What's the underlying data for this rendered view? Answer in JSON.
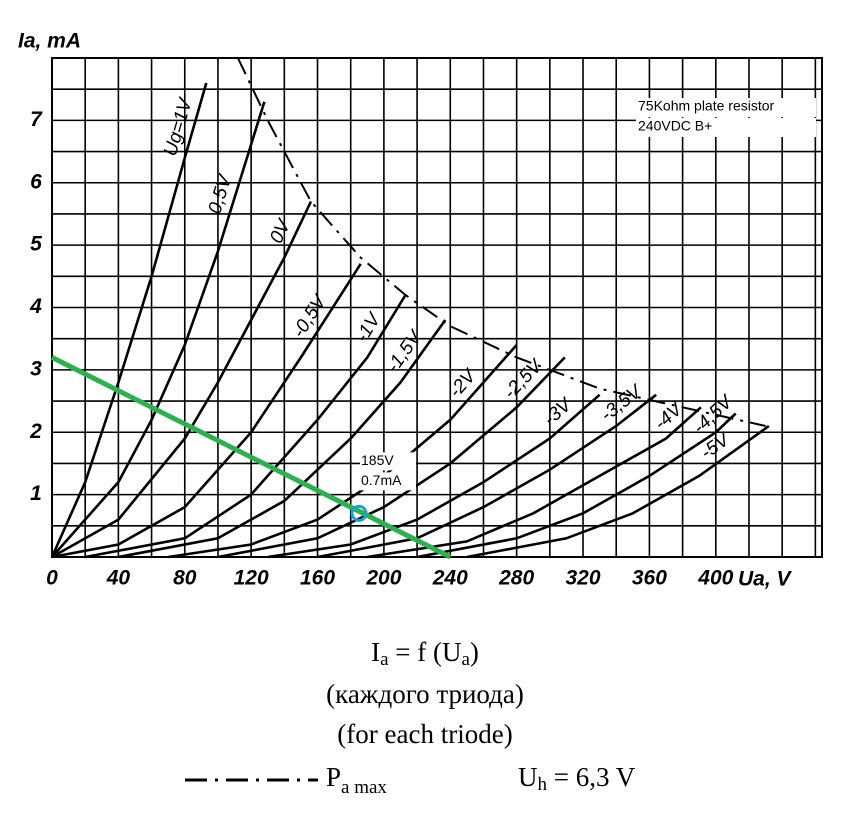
{
  "chart_data": {
    "type": "line",
    "y_label": "Ia, mA",
    "x_label": "Ua, V",
    "xlim": [
      0,
      464
    ],
    "ylim": [
      0,
      8
    ],
    "xticks": [
      0,
      40,
      80,
      120,
      160,
      200,
      240,
      280,
      320,
      360,
      400
    ],
    "yticks": [
      1,
      2,
      3,
      4,
      5,
      6,
      7
    ],
    "xgrid": [
      0,
      20,
      40,
      60,
      80,
      100,
      120,
      140,
      160,
      180,
      200,
      220,
      240,
      260,
      280,
      300,
      320,
      340,
      360,
      380,
      400,
      420,
      440,
      460
    ],
    "ygrid": [
      0,
      0.5,
      1,
      1.5,
      2,
      2.5,
      3,
      3.5,
      4,
      4.5,
      5,
      5.5,
      6,
      6.5,
      7,
      7.5
    ],
    "series": [
      {
        "name": "Ug=1V",
        "color": "#000000",
        "x": [
          0,
          20,
          40,
          60,
          80,
          93
        ],
        "values": [
          0,
          1.2,
          2.8,
          4.5,
          6.4,
          7.6
        ]
      },
      {
        "name": "0,5V",
        "color": "#000000",
        "x": [
          0,
          40,
          60,
          80,
          100,
          128
        ],
        "values": [
          0,
          1.2,
          2.2,
          3.4,
          4.9,
          7.3
        ]
      },
      {
        "name": "0V",
        "color": "#000000",
        "x": [
          0,
          40,
          80,
          100,
          120,
          140,
          156
        ],
        "values": [
          0,
          0.6,
          1.9,
          2.8,
          3.8,
          4.8,
          5.7
        ]
      },
      {
        "name": "-0,5V",
        "color": "#000000",
        "x": [
          0,
          40,
          80,
          120,
          150,
          186
        ],
        "values": [
          0,
          0.2,
          0.8,
          2.0,
          3.2,
          4.7
        ]
      },
      {
        "name": "-1V",
        "color": "#000000",
        "x": [
          20,
          80,
          120,
          160,
          190,
          213
        ],
        "values": [
          0,
          0.3,
          1.0,
          2.2,
          3.2,
          4.2
        ]
      },
      {
        "name": "-1,5V",
        "color": "#000000",
        "x": [
          40,
          100,
          140,
          180,
          210,
          237
        ],
        "values": [
          0,
          0.3,
          0.9,
          1.9,
          2.8,
          3.8
        ]
      },
      {
        "name": "-2V",
        "color": "#000000",
        "x": [
          70,
          120,
          160,
          200,
          240,
          280
        ],
        "values": [
          0,
          0.2,
          0.6,
          1.3,
          2.2,
          3.4
        ]
      },
      {
        "name": "-2,5V",
        "color": "#000000",
        "x": [
          100,
          160,
          200,
          240,
          280,
          309
        ],
        "values": [
          0,
          0.3,
          0.8,
          1.5,
          2.4,
          3.2
        ]
      },
      {
        "name": "-3V",
        "color": "#000000",
        "x": [
          130,
          180,
          220,
          260,
          300,
          330
        ],
        "values": [
          0,
          0.2,
          0.6,
          1.2,
          1.9,
          2.6
        ]
      },
      {
        "name": "-3,5V",
        "color": "#000000",
        "x": [
          160,
          220,
          260,
          300,
          340,
          364
        ],
        "values": [
          0,
          0.3,
          0.8,
          1.4,
          2.1,
          2.6
        ]
      },
      {
        "name": "-4V",
        "color": "#000000",
        "x": [
          190,
          250,
          290,
          330,
          370,
          391
        ],
        "values": [
          0,
          0.25,
          0.7,
          1.3,
          1.9,
          2.4
        ]
      },
      {
        "name": "-4,5V",
        "color": "#000000",
        "x": [
          220,
          280,
          320,
          360,
          400,
          412
        ],
        "values": [
          0,
          0.3,
          0.7,
          1.3,
          2.0,
          2.3
        ]
      },
      {
        "name": "-5V",
        "color": "#000000",
        "x": [
          250,
          310,
          350,
          390,
          432
        ],
        "values": [
          0,
          0.3,
          0.7,
          1.3,
          2.1
        ]
      }
    ],
    "pmax": {
      "style": "dash-dot",
      "color": "#000000",
      "x": [
        112,
        130,
        156,
        186,
        213,
        240,
        280,
        330,
        380,
        430
      ],
      "values": [
        8,
        7,
        5.7,
        4.8,
        4.2,
        3.7,
        3.2,
        2.7,
        2.4,
        2.1
      ]
    },
    "load_line": {
      "color": "#2bb24c",
      "x": [
        0,
        240
      ],
      "values": [
        3.2,
        0
      ]
    },
    "operating_point": {
      "color": "#1aa0d8",
      "x": 185,
      "y": 0.7,
      "labels": [
        "185V",
        "0.7mA"
      ]
    },
    "note": [
      "75Kohm plate resistor",
      "240VDC B+"
    ],
    "formula": [
      "I",
      "a",
      " = f (U",
      "a",
      ")"
    ],
    "caption_ru": "(каждого триода)",
    "caption_en": "(for each triode)",
    "pmax_legend": [
      "P",
      "a max"
    ],
    "heater": [
      "U",
      "h",
      " = 6,3 V"
    ]
  }
}
